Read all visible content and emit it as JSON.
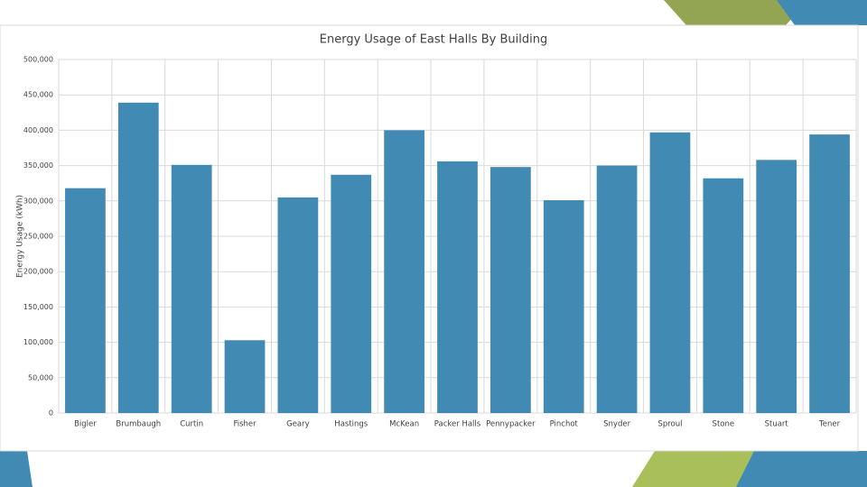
{
  "chart_data": {
    "type": "bar",
    "title": "Energy Usage of East Halls By Building",
    "y_label": "Energy Usage (kWh)",
    "categories": [
      "Bigler",
      "Brumbaugh",
      "Curtin",
      "Fisher",
      "Geary",
      "Hastings",
      "McKean",
      "Packer Halls",
      "Pennypacker",
      "Pinchot",
      "Snyder",
      "Sproul",
      "Stone",
      "Stuart",
      "Tener"
    ],
    "values": [
      318000,
      439000,
      351000,
      103000,
      305000,
      337000,
      400000,
      356000,
      348000,
      301000,
      350000,
      397000,
      332000,
      358000,
      394000
    ],
    "color": "#418ab3",
    "ylim": [
      0,
      500000
    ],
    "yticks": [
      0,
      {
        "value": 50000,
        "label": "50,000"
      },
      {
        "value": 100000,
        "label": "100,000"
      },
      {
        "value": 150000,
        "label": "150,000"
      },
      {
        "value": 200000,
        "label": "200,000"
      },
      {
        "value": 250000,
        "label": "250,000"
      },
      {
        "value": 300000,
        "label": "300,000"
      },
      {
        "value": 350000,
        "label": "350,000"
      },
      {
        "value": 400000,
        "label": "400,000"
      },
      {
        "value": 450000,
        "label": "450,000"
      },
      {
        "value": 500000,
        "label": "500,000"
      }
    ],
    "grid": true
  }
}
